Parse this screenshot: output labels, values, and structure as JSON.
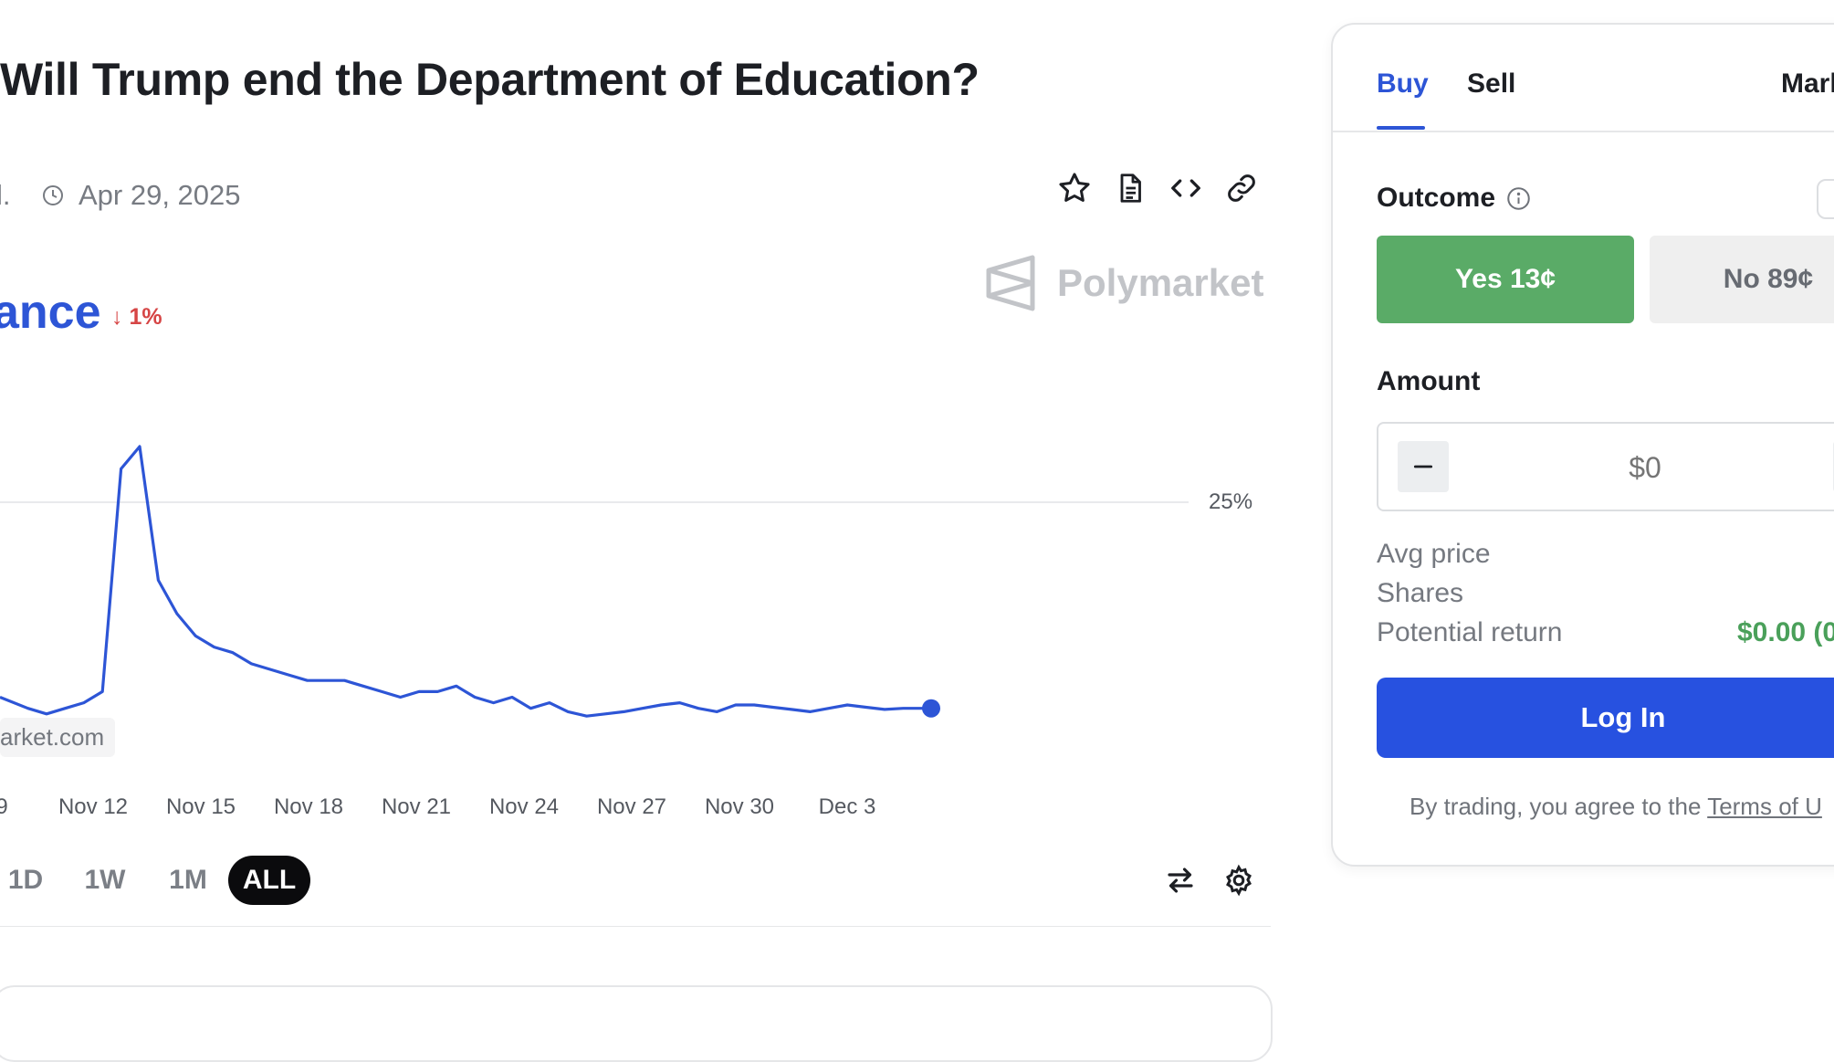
{
  "market": {
    "title": "Will Trump end the Department of Education?",
    "volume_fragment": "l.",
    "end_date": "Apr 29, 2025",
    "icons": [
      "star-icon",
      "document-icon",
      "code-embed-icon",
      "link-icon"
    ]
  },
  "chance": {
    "label_fragment": "ance",
    "change": "1%",
    "change_direction": "down",
    "change_color": "#d64545"
  },
  "brand": {
    "name": "Polymarket",
    "watermark": "arket.com"
  },
  "chart_data": {
    "type": "line",
    "x_tick_labels": [
      "9",
      "Nov 12",
      "Nov 15",
      "Nov 18",
      "Nov 21",
      "Nov 24",
      "Nov 27",
      "Nov 30",
      "Dec 3"
    ],
    "y_tick_labels": [
      "25%"
    ],
    "gridlines": [
      25
    ],
    "color": "#2d55d6",
    "series": [
      {
        "x": [
          0,
          3,
          5,
          7,
          9,
          11,
          13,
          15,
          17,
          19,
          21,
          23,
          25,
          27,
          29,
          31,
          33,
          35,
          37,
          39,
          41,
          43,
          45,
          47,
          49,
          51,
          53,
          55,
          57,
          59,
          61,
          63,
          65,
          67,
          69,
          71,
          73,
          75,
          77,
          79,
          81,
          83,
          85,
          87,
          89,
          91,
          93,
          95,
          97,
          99,
          100
        ],
        "y": [
          7.5,
          6.5,
          6,
          6.5,
          7,
          8,
          28,
          30,
          18,
          15,
          13,
          12,
          11.5,
          10.5,
          10,
          9.5,
          9,
          9,
          9,
          8.5,
          8,
          7.5,
          8,
          8,
          8.5,
          7.5,
          7,
          7.5,
          6.5,
          7,
          6.2,
          5.8,
          6,
          6.2,
          6.5,
          6.8,
          7,
          6.5,
          6.2,
          6.8,
          6.8,
          6.6,
          6.4,
          6.2,
          6.5,
          6.8,
          6.6,
          6.4,
          6.5,
          6.5,
          6.5
        ]
      }
    ]
  },
  "ranges": {
    "items": [
      "1D",
      "1W",
      "1M",
      "ALL"
    ],
    "active": "ALL"
  },
  "trade_panel": {
    "tabs": {
      "buy": "Buy",
      "sell": "Sell",
      "market": "Mark"
    },
    "outcome_label": "Outcome",
    "yes": "Yes 13¢",
    "no": "No 89¢",
    "amount_label": "Amount",
    "amount_placeholder": "$0",
    "avg_price_label": "Avg price",
    "shares_label": "Shares",
    "potential_return_label": "Potential return",
    "potential_return_value": "$0.00 (0",
    "login_label": "Log In",
    "terms_prefix": "By trading, you agree to the ",
    "terms_link": "Terms of U",
    "accent": "#2751e0",
    "yes_color": "#5aab67"
  }
}
